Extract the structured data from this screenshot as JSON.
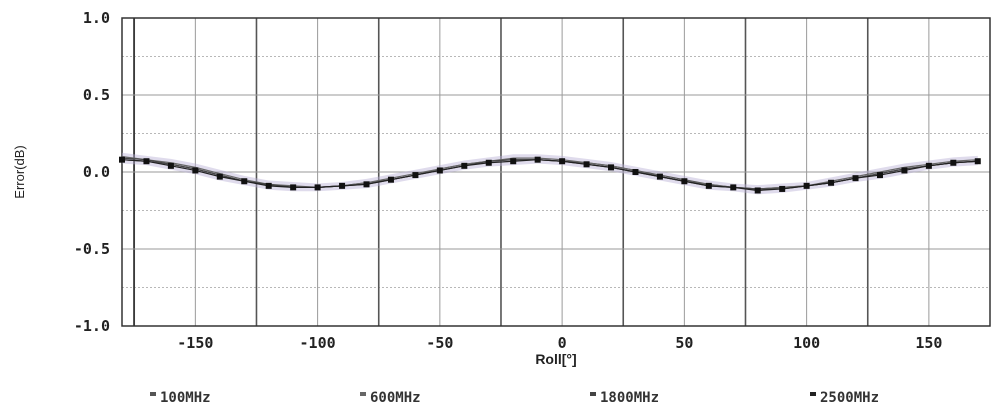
{
  "chart_data": {
    "type": "line",
    "xlabel": "Roll[°]",
    "ylabel": "Error(dB)",
    "xlim": [
      -180,
      175
    ],
    "ylim": [
      -1.0,
      1.0
    ],
    "x_ticks": [
      -150,
      -100,
      -50,
      0,
      50,
      100,
      150
    ],
    "y_ticks": [
      1.0,
      0.5,
      0.0,
      -0.5,
      -1.0
    ],
    "x_tick_labels": [
      "-150",
      "-100",
      "-50",
      "0",
      "50",
      "100",
      "150"
    ],
    "y_tick_labels": [
      "1.0",
      "0.5",
      "0.0",
      "-0.5",
      "-1.0"
    ],
    "grid": true,
    "legend_position": "bottom",
    "x": [
      -180,
      -170,
      -160,
      -150,
      -140,
      -130,
      -120,
      -110,
      -100,
      -90,
      -80,
      -70,
      -60,
      -50,
      -40,
      -30,
      -20,
      -10,
      0,
      10,
      20,
      30,
      40,
      50,
      60,
      70,
      80,
      90,
      100,
      110,
      120,
      130,
      140,
      150,
      160,
      170
    ],
    "series": [
      {
        "name": "100MHz",
        "color": "#555555",
        "values": [
          0.08,
          0.07,
          0.05,
          0.02,
          -0.02,
          -0.06,
          -0.08,
          -0.1,
          -0.1,
          -0.09,
          -0.07,
          -0.05,
          -0.02,
          0.02,
          0.05,
          0.07,
          0.08,
          0.08,
          0.07,
          0.06,
          0.04,
          0.01,
          -0.02,
          -0.05,
          -0.08,
          -0.1,
          -0.11,
          -0.1,
          -0.09,
          -0.07,
          -0.04,
          -0.01,
          0.02,
          0.04,
          0.06,
          0.07
        ]
      },
      {
        "name": "600MHz",
        "color": "#666666",
        "values": [
          0.1,
          0.08,
          0.06,
          0.03,
          -0.01,
          -0.05,
          -0.08,
          -0.09,
          -0.1,
          -0.09,
          -0.07,
          -0.04,
          -0.01,
          0.02,
          0.05,
          0.07,
          0.09,
          0.09,
          0.08,
          0.06,
          0.04,
          0.01,
          -0.03,
          -0.06,
          -0.08,
          -0.1,
          -0.11,
          -0.1,
          -0.09,
          -0.06,
          -0.03,
          0.0,
          0.03,
          0.05,
          0.07,
          0.08
        ]
      },
      {
        "name": "1800MHz",
        "color": "#444444",
        "values": [
          0.09,
          0.08,
          0.05,
          0.02,
          -0.02,
          -0.06,
          -0.08,
          -0.1,
          -0.1,
          -0.09,
          -0.08,
          -0.05,
          -0.02,
          0.01,
          0.04,
          0.07,
          0.08,
          0.08,
          0.07,
          0.05,
          0.03,
          0.0,
          -0.03,
          -0.06,
          -0.09,
          -0.1,
          -0.11,
          -0.11,
          -0.09,
          -0.07,
          -0.04,
          -0.01,
          0.02,
          0.04,
          0.06,
          0.07
        ]
      },
      {
        "name": "2500MHz",
        "color": "#222222",
        "values": [
          0.08,
          0.07,
          0.04,
          0.01,
          -0.03,
          -0.06,
          -0.09,
          -0.1,
          -0.1,
          -0.09,
          -0.08,
          -0.05,
          -0.02,
          0.01,
          0.04,
          0.06,
          0.07,
          0.08,
          0.07,
          0.05,
          0.03,
          0.0,
          -0.03,
          -0.06,
          -0.09,
          -0.1,
          -0.12,
          -0.11,
          -0.09,
          -0.07,
          -0.04,
          -0.02,
          0.01,
          0.04,
          0.06,
          0.07
        ]
      }
    ],
    "band_color": "#b9b0d4"
  }
}
